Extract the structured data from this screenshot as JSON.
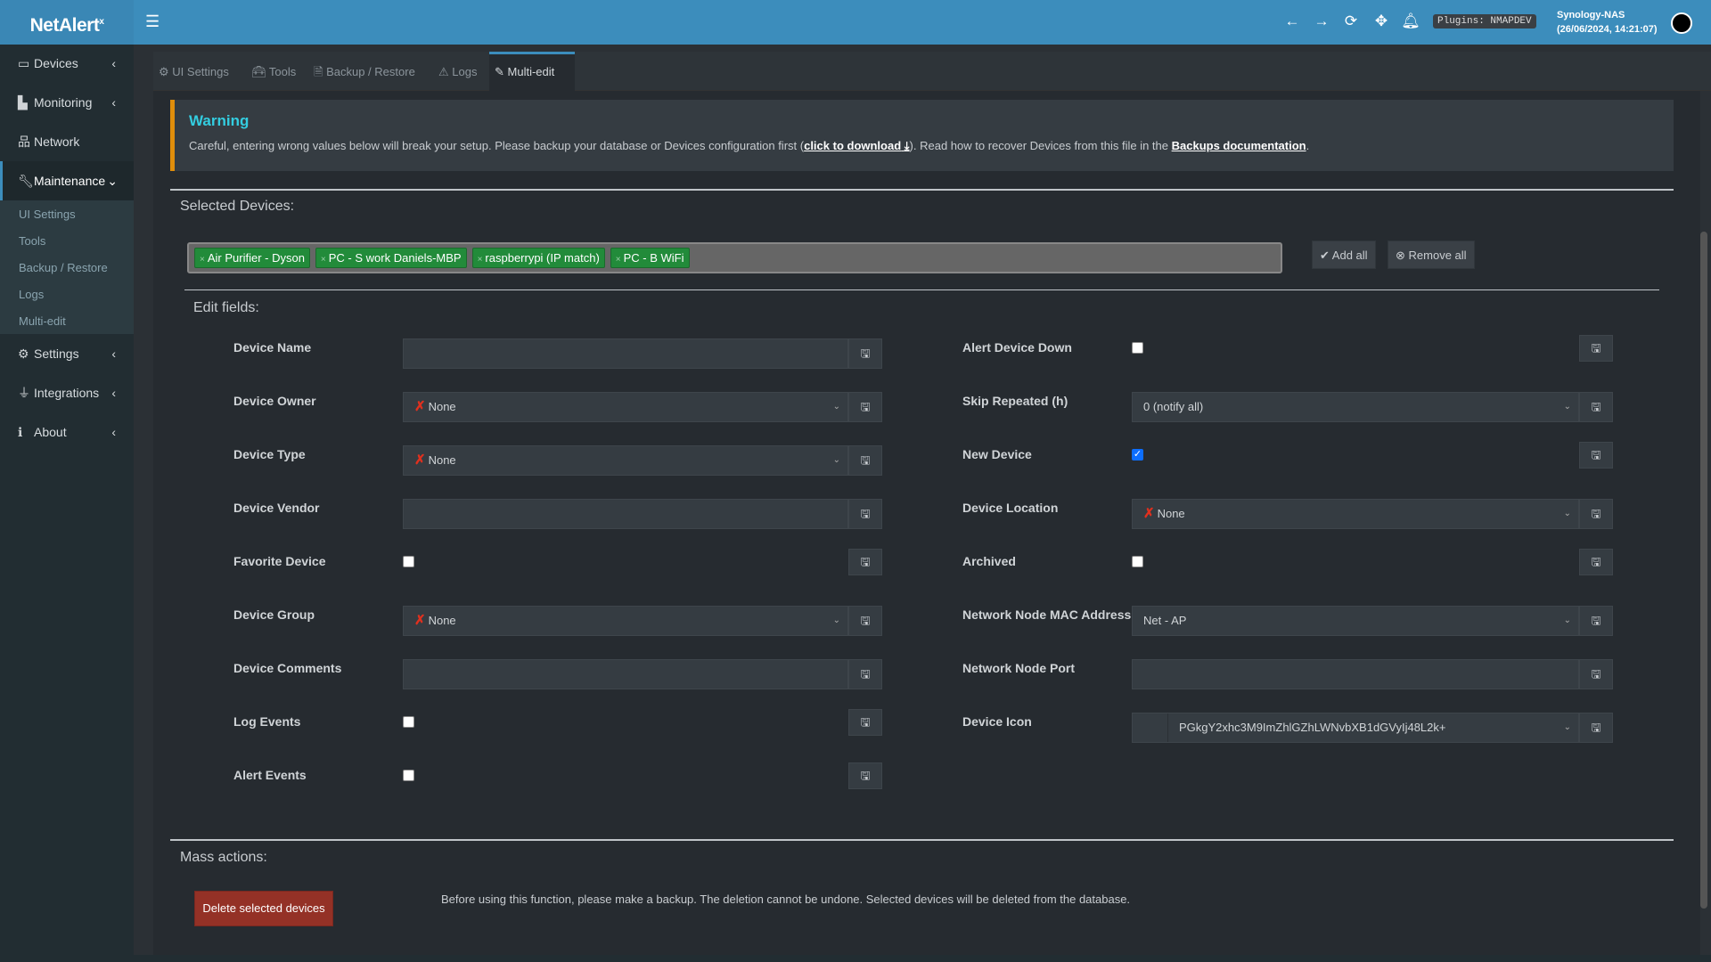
{
  "app": {
    "logo": "NetAlert",
    "logo_sup": "x",
    "host": "Synology-NAS",
    "datetime": "(26/06/2024, 14:21:07)",
    "plugins": "Plugins: NMAPDEV"
  },
  "header_icons": [
    "arrow-left-icon",
    "arrow-right-icon",
    "refresh-icon",
    "move-icon",
    "bell-icon"
  ],
  "sidebar": {
    "items": [
      {
        "label": "Devices",
        "icon": "laptop-icon"
      },
      {
        "label": "Monitoring",
        "icon": "chart-icon"
      },
      {
        "label": "Network",
        "icon": "sitemap-icon"
      },
      {
        "label": "Maintenance",
        "icon": "wrench-icon"
      },
      {
        "label": "Settings",
        "icon": "gear-icon"
      },
      {
        "label": "Integrations",
        "icon": "plug-icon"
      },
      {
        "label": "About",
        "icon": "info-icon"
      }
    ],
    "submenu": [
      "UI Settings",
      "Tools",
      "Backup / Restore",
      "Logs",
      "Multi-edit"
    ]
  },
  "tabs": [
    {
      "label": "UI Settings",
      "icon": "gears-icon"
    },
    {
      "label": "Tools",
      "icon": "toolbox-icon"
    },
    {
      "label": "Backup / Restore",
      "icon": "file-icon"
    },
    {
      "label": "Logs",
      "icon": "warning-icon"
    },
    {
      "label": "Multi-edit",
      "icon": "pencil-icon"
    }
  ],
  "warning": {
    "title": "Warning",
    "text1": "Careful, entering wrong values below will break your setup. Please backup your database or Devices configuration first (",
    "link1": "click to download",
    "text2": "). Read how to recover Devices from this file in the ",
    "link2": "Backups documentation",
    "text3": "."
  },
  "selected": {
    "title": "Selected Devices:",
    "chips": [
      "Air Purifier - Dyson",
      "PC - S work Daniels-MBP",
      "raspberrypi (IP match)",
      "PC - B WiFi"
    ],
    "add_all": "Add all",
    "remove_all": "Remove all"
  },
  "edit": {
    "title": "Edit fields:",
    "left": [
      {
        "label": "Device Name",
        "type": "text",
        "value": ""
      },
      {
        "label": "Device Owner",
        "type": "select",
        "value": "None",
        "x": true
      },
      {
        "label": "Device Type",
        "type": "select",
        "value": "None",
        "x": true
      },
      {
        "label": "Device Vendor",
        "type": "text",
        "value": ""
      },
      {
        "label": "Favorite Device",
        "type": "checkbox",
        "checked": false
      },
      {
        "label": "Device Group",
        "type": "select",
        "value": "None",
        "x": true
      },
      {
        "label": "Device Comments",
        "type": "text",
        "value": ""
      },
      {
        "label": "Log Events",
        "type": "checkbox",
        "checked": false
      },
      {
        "label": "Alert Events",
        "type": "checkbox",
        "checked": false
      }
    ],
    "right": [
      {
        "label": "Alert Device Down",
        "type": "checkbox",
        "checked": false
      },
      {
        "label": "Skip Repeated (h)",
        "type": "select",
        "value": "0 (notify all)"
      },
      {
        "label": "New Device",
        "type": "checkbox",
        "checked": true
      },
      {
        "label": "Device Location",
        "type": "select",
        "value": "None",
        "x": true
      },
      {
        "label": "Archived",
        "type": "checkbox",
        "checked": false
      },
      {
        "label": "Network Node MAC Address",
        "type": "select",
        "value": "Net - AP"
      },
      {
        "label": "Network Node Port",
        "type": "text",
        "value": ""
      },
      {
        "label": "Device Icon",
        "type": "icon",
        "value": "PGkgY2xhc3M9ImZhlGZhLWNvbXB1dGVyIj48L2k+"
      }
    ]
  },
  "mass": {
    "title": "Mass actions:",
    "delete_label": "Delete selected devices",
    "note": "Before using this function, please make a backup. The deletion cannot be undone. Selected devices will be deleted from the database."
  },
  "colors": {
    "header": "#3c8dbc",
    "sidebar": "#222d32",
    "warning_border": "#e08e0b",
    "chip": "#228b3a",
    "danger": "#943126",
    "checkbox_on": "#0d6efd"
  }
}
